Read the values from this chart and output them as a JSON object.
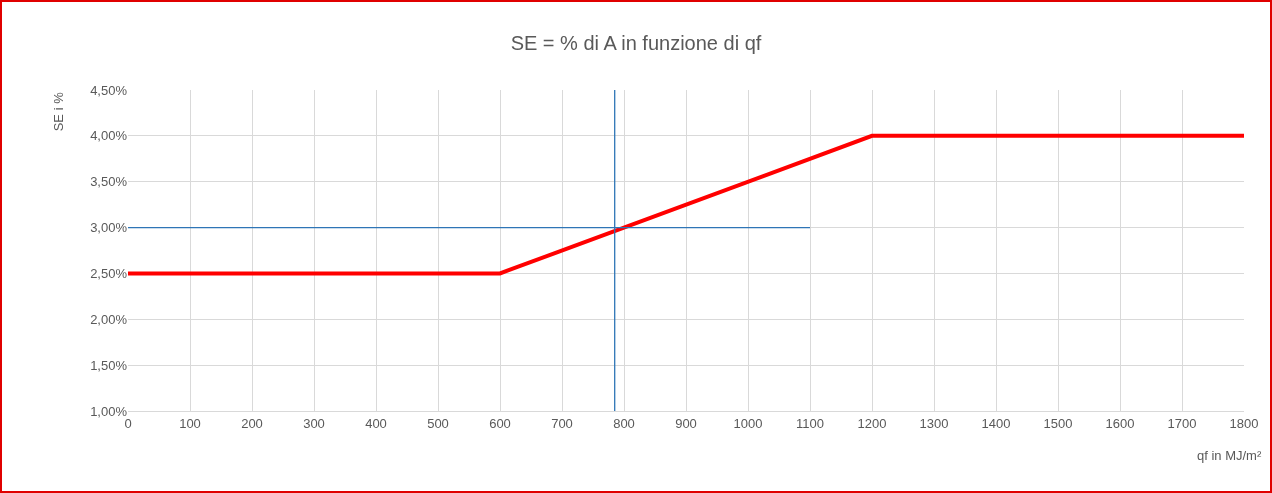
{
  "chart_data": {
    "type": "line",
    "title": "SE = % di A in funzione di qf",
    "xlabel": "qf in MJ/m²",
    "ylabel": "SE i %",
    "x": [
      0,
      600,
      1200,
      1800
    ],
    "series": [
      {
        "color": "#ff0000",
        "values": [
          2.5,
          2.5,
          4.0,
          4.0
        ]
      },
      {
        "type": "line",
        "color": "#2e75b6",
        "x": [
          0,
          1100
        ],
        "values": [
          3.0,
          3.0
        ]
      },
      {
        "type": "line",
        "color": "#2e75b6",
        "x": [
          785,
          785
        ],
        "values": [
          1.0,
          4.5
        ]
      }
    ],
    "xlim": [
      0,
      1800
    ],
    "xticks": [
      0,
      100,
      200,
      300,
      400,
      500,
      600,
      700,
      800,
      900,
      1000,
      1100,
      1200,
      1300,
      1400,
      1500,
      1600,
      1700,
      1800
    ],
    "ylim": [
      1.0,
      4.5
    ],
    "yticks": [
      {
        "value": 1.0,
        "label": "1,00%"
      },
      {
        "value": 1.5,
        "label": "1,50%"
      },
      {
        "value": 2.0,
        "label": "2,00%"
      },
      {
        "value": 2.5,
        "label": "2,50%"
      },
      {
        "value": 3.0,
        "label": "3,00%"
      },
      {
        "value": 3.5,
        "label": "3,50%"
      },
      {
        "value": 4.0,
        "label": "4,00%"
      },
      {
        "value": 4.5,
        "label": "4,50%"
      }
    ],
    "grid": true
  }
}
